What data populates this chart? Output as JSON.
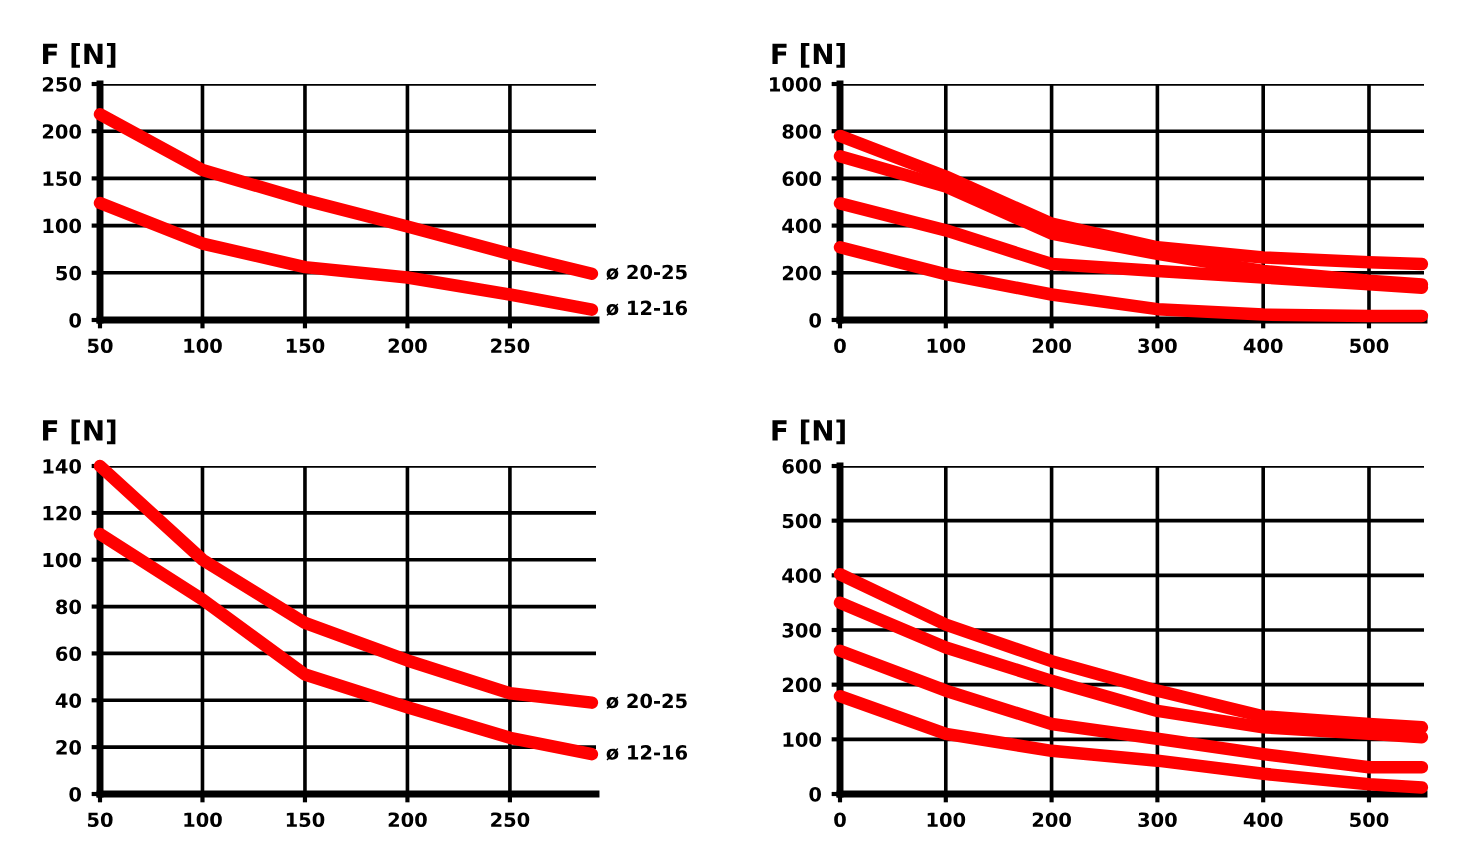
{
  "chart_data": [
    {
      "type": "line",
      "ylabel": "F [N]",
      "x": [
        50,
        100,
        150,
        200,
        250,
        290
      ],
      "xlim": [
        50,
        292
      ],
      "xticks": [
        50,
        100,
        150,
        200,
        250
      ],
      "ylim": [
        0,
        250
      ],
      "yticks": [
        0,
        50,
        100,
        150,
        200,
        250
      ],
      "grid": true,
      "line_style": "solid",
      "series": [
        {
          "name": "ø 20-25",
          "color": "#ff0000",
          "values": [
            218,
            159,
            127,
            99,
            70,
            49
          ]
        },
        {
          "name": "ø 12-16",
          "color": "#ff0000",
          "values": [
            124,
            81,
            56,
            45,
            27,
            11
          ]
        }
      ]
    },
    {
      "type": "line",
      "ylabel": "F [N]",
      "x": [
        0,
        100,
        200,
        300,
        400,
        500,
        550
      ],
      "xlim": [
        0,
        552
      ],
      "xticks": [
        0,
        100,
        200,
        300,
        400,
        500
      ],
      "ylim": [
        0,
        1000
      ],
      "yticks": [
        0,
        200,
        400,
        600,
        800,
        1000
      ],
      "grid": true,
      "line_style": "solid",
      "series": [
        {
          "color": "#ff0000",
          "values": [
            780,
            608,
            408,
            308,
            265,
            245,
            237
          ]
        },
        {
          "color": "#ff0000",
          "values": [
            694,
            566,
            366,
            280,
            208,
            166,
            151
          ]
        },
        {
          "color": "#ff0000",
          "values": [
            494,
            380,
            237,
            208,
            180,
            151,
            137
          ]
        },
        {
          "color": "#ff0000",
          "values": [
            308,
            194,
            108,
            46,
            23,
            17,
            17
          ]
        }
      ]
    },
    {
      "type": "line",
      "ylabel": "F [N]",
      "x": [
        50,
        100,
        150,
        200,
        250,
        290
      ],
      "xlim": [
        50,
        292
      ],
      "xticks": [
        50,
        100,
        150,
        200,
        250
      ],
      "ylim": [
        0,
        140
      ],
      "yticks": [
        0,
        20,
        40,
        60,
        80,
        100,
        120,
        140
      ],
      "grid": true,
      "line_style": "solid",
      "series": [
        {
          "name": "ø 20-25",
          "color": "#ff0000",
          "values": [
            140,
            100,
            73,
            57,
            43,
            39
          ]
        },
        {
          "name": "ø 12-16",
          "color": "#ff0000",
          "values": [
            111,
            83,
            51,
            37,
            24,
            17
          ]
        }
      ]
    },
    {
      "type": "line",
      "ylabel": "F [N]",
      "x": [
        0,
        100,
        200,
        300,
        400,
        500,
        550
      ],
      "xlim": [
        0,
        552
      ],
      "xticks": [
        0,
        100,
        200,
        300,
        400,
        500
      ],
      "ylim": [
        0,
        600
      ],
      "yticks": [
        0,
        100,
        200,
        300,
        400,
        500,
        600
      ],
      "grid": true,
      "line_style": "solid",
      "series": [
        {
          "color": "#ff0000",
          "values": [
            402,
            310,
            243,
            189,
            142,
            128,
            122
          ]
        },
        {
          "color": "#ff0000",
          "values": [
            350,
            268,
            207,
            152,
            122,
            110,
            104
          ]
        },
        {
          "color": "#ff0000",
          "values": [
            262,
            189,
            128,
            101,
            73,
            49,
            49
          ]
        },
        {
          "color": "#ff0000",
          "values": [
            179,
            110,
            79,
            61,
            37,
            18,
            12
          ]
        }
      ]
    }
  ]
}
